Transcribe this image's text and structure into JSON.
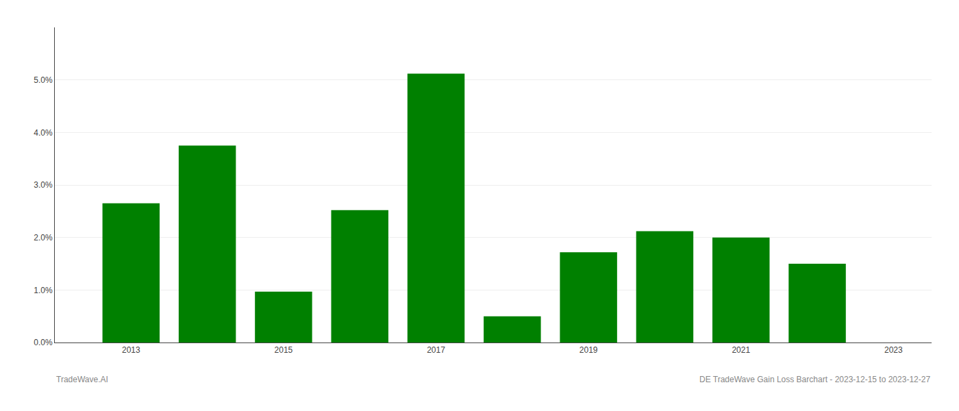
{
  "chart_data": {
    "type": "bar",
    "x": [
      2013,
      2014,
      2015,
      2016,
      2017,
      2018,
      2019,
      2020,
      2021,
      2022
    ],
    "values": [
      0.0265,
      0.0375,
      0.0097,
      0.0252,
      0.0512,
      0.005,
      0.0172,
      0.0212,
      0.02,
      0.015
    ],
    "color": "#008000",
    "xlim": [
      2012.0,
      2023.5
    ],
    "xticks": [
      2013,
      2015,
      2017,
      2019,
      2021,
      2023
    ],
    "ylim": [
      0,
      0.06
    ],
    "yticks": [
      {
        "value": 0.0,
        "label": "0.0%"
      },
      {
        "value": 0.01,
        "label": "1.0%"
      },
      {
        "value": 0.02,
        "label": "2.0%"
      },
      {
        "value": 0.03,
        "label": "3.0%"
      },
      {
        "value": 0.04,
        "label": "4.0%"
      },
      {
        "value": 0.05,
        "label": "5.0%"
      }
    ],
    "grid": true,
    "annotations": [
      "TradeWave.AI",
      "DE TradeWave Gain Loss Barchart - 2023-12-15 to 2023-12-27"
    ]
  }
}
